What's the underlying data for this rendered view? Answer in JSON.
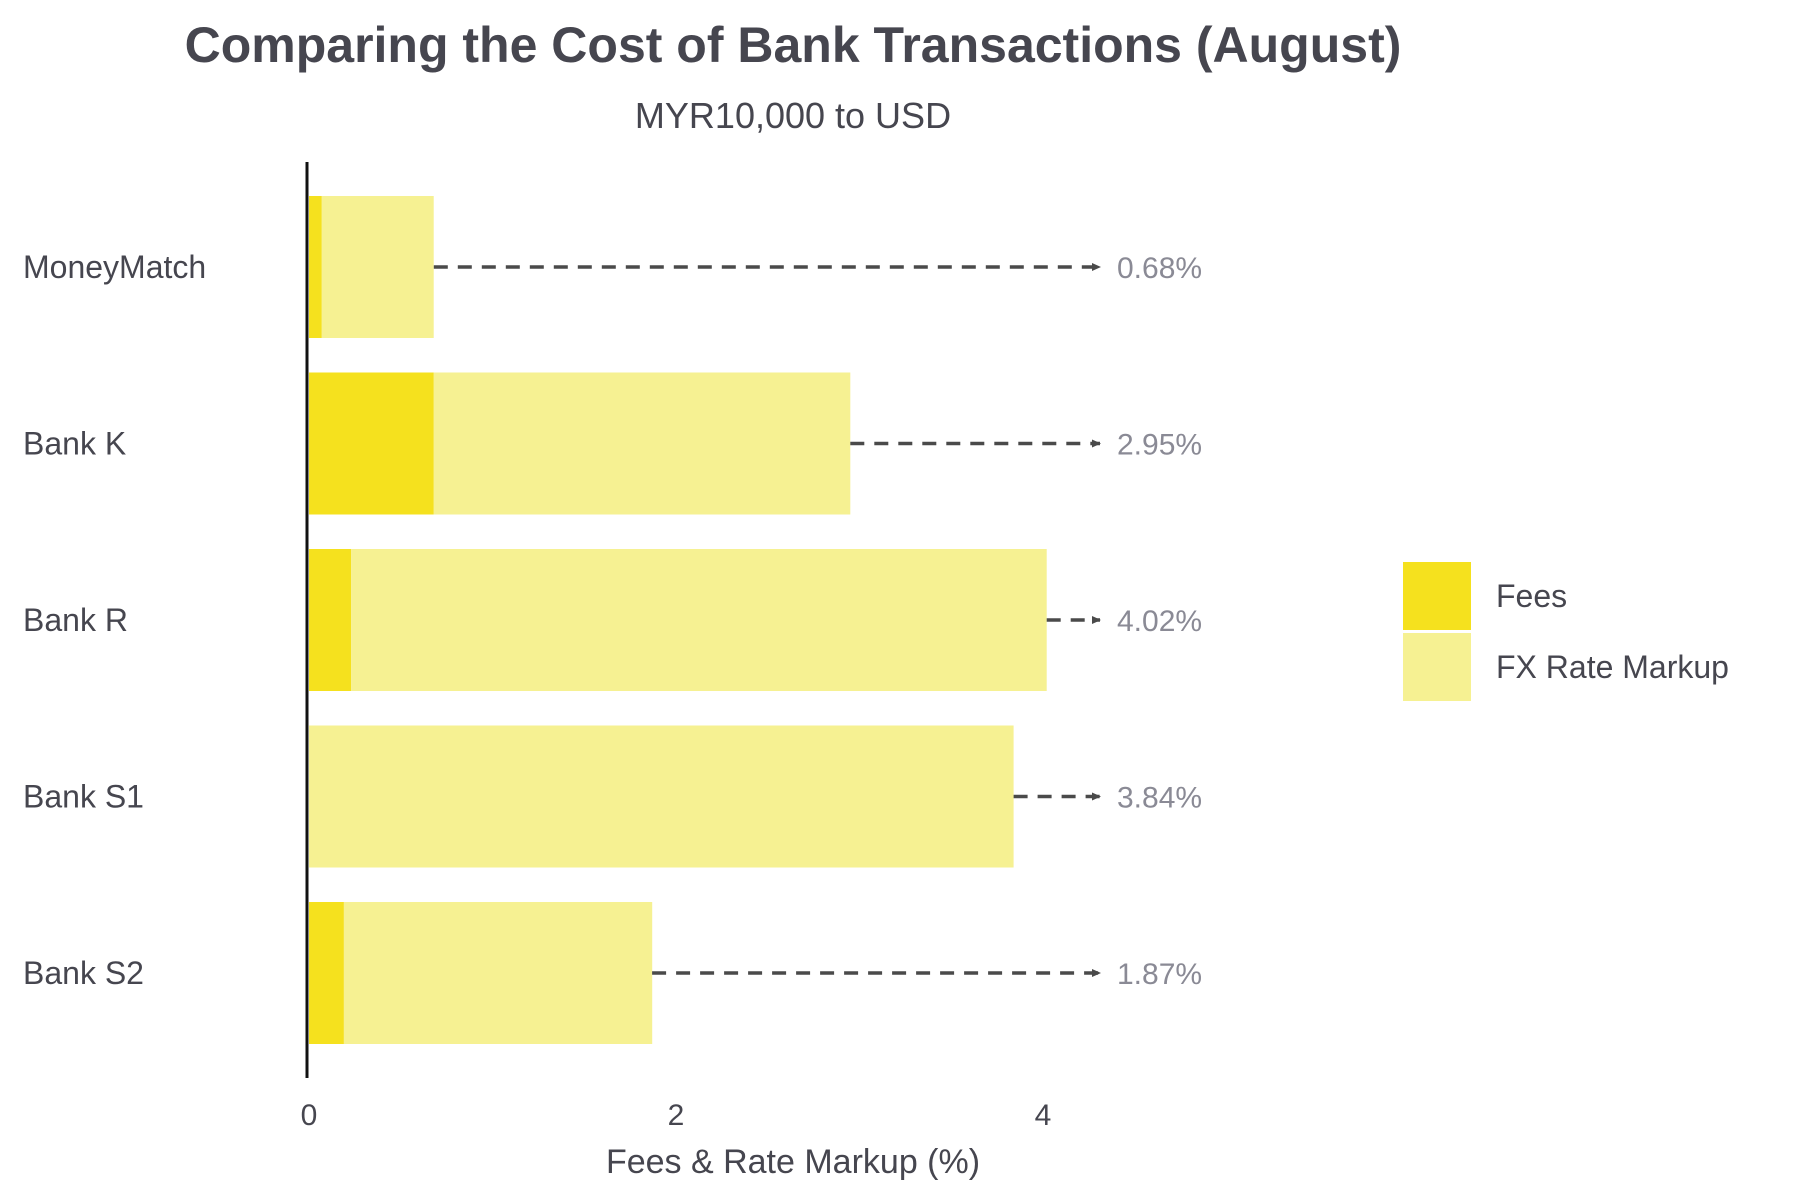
{
  "chart_data": {
    "type": "bar",
    "orientation": "horizontal",
    "stacked": true,
    "title": "Comparing the Cost of Bank Transactions (August)",
    "subtitle": "MYR10,000 to USD",
    "xlabel": "Fees & Rate Markup (%)",
    "ylabel": "",
    "xlim": [
      0,
      4.3
    ],
    "xticks": [
      0,
      2,
      4
    ],
    "xtick_labels": [
      "0",
      "2",
      "4"
    ],
    "grid": false,
    "legend_position": "right",
    "categories": [
      "MoneyMatch",
      "Bank K",
      "Bank R",
      "Bank S1",
      "Bank S2"
    ],
    "series": [
      {
        "name": "Fees",
        "color": "#f5e11e",
        "values": [
          0.07,
          0.68,
          0.23,
          0.0,
          0.19
        ]
      },
      {
        "name": "FX Rate Markup",
        "color": "#f6f192",
        "values": [
          0.61,
          2.27,
          3.79,
          3.84,
          1.68
        ]
      }
    ],
    "totals": [
      0.68,
      2.95,
      4.02,
      3.84,
      1.87
    ],
    "total_labels": [
      "0.68%",
      "2.95%",
      "4.02%",
      "3.84%",
      "1.87%"
    ],
    "annotation_style": "dashed arrow from bar end to total label",
    "annotation_color": "#4a4a4a"
  }
}
